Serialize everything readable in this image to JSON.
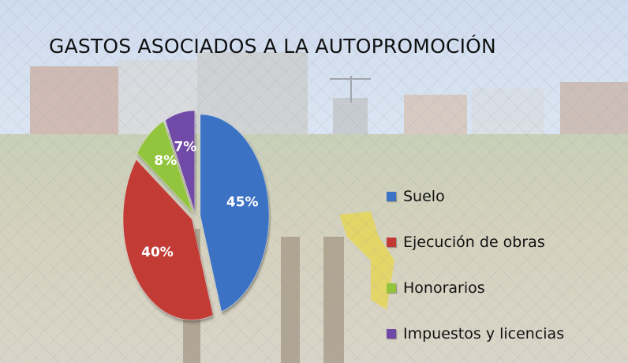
{
  "chart_data": {
    "type": "pie",
    "title": "GASTOS ASOCIADOS A LA AUTOPROMOCIÓN",
    "categories": [
      "Suelo",
      "Ejecución de obras",
      "Honorarios",
      "Impuestos y licencias"
    ],
    "values": [
      45,
      40,
      8,
      7
    ],
    "value_labels": [
      "45%",
      "40%",
      "8%",
      "7%"
    ],
    "colors": [
      "#3a72c4",
      "#c23a35",
      "#92c53c",
      "#7148a6"
    ],
    "legend_position": "right",
    "exploded": true
  }
}
